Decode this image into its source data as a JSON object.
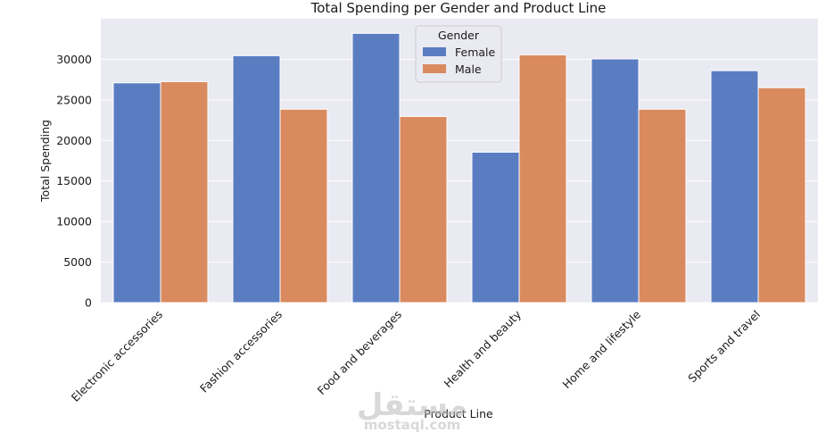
{
  "chart_data": {
    "type": "bar",
    "title": "Total Spending per Gender and Product Line",
    "xlabel": "Product Line",
    "ylabel": "Total Spending",
    "ylim": [
      0,
      35000
    ],
    "yticks": [
      0,
      5000,
      10000,
      15000,
      20000,
      25000,
      30000
    ],
    "grid": true,
    "categories": [
      "Electronic accessories",
      "Fashion accessories",
      "Food and beverages",
      "Health and beauty",
      "Home and lifestyle",
      "Sports and travel"
    ],
    "series": [
      {
        "name": "Female",
        "color": "#5a7dc2",
        "values": [
          27100,
          30450,
          33200,
          18550,
          30050,
          28600
        ]
      },
      {
        "name": "Male",
        "color": "#d98b5f",
        "values": [
          27250,
          23850,
          22950,
          30550,
          23850,
          26500
        ]
      }
    ],
    "legend": {
      "title": "Gender",
      "position": "top-center"
    }
  },
  "watermark": {
    "logo": "مستقل",
    "text": "mostaql.com"
  },
  "colors": {
    "plot_background": "#eaeaf2",
    "grid": "#ffffff"
  }
}
